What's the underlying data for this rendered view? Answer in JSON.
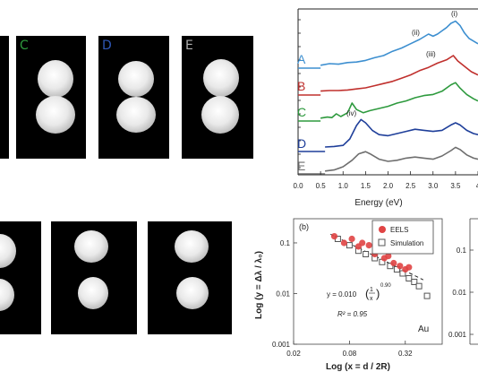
{
  "colors": {
    "A": "#3d8fd0",
    "B": "#c0302d",
    "C": "#2e9a3e",
    "D": "#1f3f9a",
    "E": "#6e6e6e"
  },
  "images": {
    "top_labels": [
      "C",
      "D",
      "E"
    ]
  },
  "chart_data": [
    {
      "type": "line",
      "xlabel": "Energy (eV)",
      "xticks": [
        "0.0",
        "0.5",
        "1.0",
        "1.5",
        "2.0",
        "2.5",
        "3.0",
        "3.5",
        "4"
      ],
      "xlim": [
        0,
        4
      ],
      "series": [
        {
          "name": "A",
          "color": "#3d8fd0",
          "x": [
            0.5,
            0.7,
            0.9,
            1.1,
            1.3,
            1.5,
            1.7,
            1.9,
            2.1,
            2.3,
            2.5,
            2.7,
            2.8,
            2.9,
            3.0,
            3.1,
            3.2,
            3.3,
            3.4,
            3.5,
            3.6,
            3.7,
            3.8,
            4.0
          ],
          "y": [
            0.02,
            0.05,
            0.04,
            0.07,
            0.08,
            0.11,
            0.16,
            0.2,
            0.28,
            0.34,
            0.42,
            0.5,
            0.55,
            0.6,
            0.56,
            0.6,
            0.66,
            0.72,
            0.8,
            0.84,
            0.76,
            0.62,
            0.52,
            0.42
          ]
        },
        {
          "name": "B",
          "color": "#c0302d",
          "x": [
            0.5,
            0.7,
            0.9,
            1.1,
            1.3,
            1.5,
            1.7,
            1.9,
            2.1,
            2.3,
            2.5,
            2.7,
            2.9,
            3.1,
            3.3,
            3.45,
            3.55,
            3.7,
            3.85,
            4.0
          ],
          "y": [
            0.04,
            0.05,
            0.05,
            0.06,
            0.08,
            0.1,
            0.14,
            0.18,
            0.22,
            0.28,
            0.34,
            0.42,
            0.48,
            0.56,
            0.62,
            0.7,
            0.6,
            0.5,
            0.4,
            0.34
          ]
        },
        {
          "name": "C",
          "color": "#2e9a3e",
          "x": [
            0.5,
            0.65,
            0.75,
            0.85,
            0.95,
            1.1,
            1.2,
            1.3,
            1.45,
            1.6,
            1.8,
            2.0,
            2.2,
            2.4,
            2.6,
            2.8,
            3.0,
            3.2,
            3.4,
            3.5,
            3.6,
            3.75,
            3.9,
            4.0
          ],
          "y": [
            0.02,
            0.04,
            0.03,
            0.1,
            0.05,
            0.12,
            0.3,
            0.18,
            0.12,
            0.16,
            0.2,
            0.24,
            0.3,
            0.34,
            0.4,
            0.44,
            0.46,
            0.52,
            0.64,
            0.68,
            0.58,
            0.46,
            0.38,
            0.34
          ]
        },
        {
          "name": "D",
          "color": "#1f3f9a",
          "x": [
            0.6,
            0.8,
            1.0,
            1.15,
            1.3,
            1.4,
            1.5,
            1.65,
            1.8,
            2.0,
            2.2,
            2.4,
            2.6,
            2.8,
            3.0,
            3.2,
            3.4,
            3.5,
            3.6,
            3.75,
            3.9,
            4.0
          ],
          "y": [
            0.05,
            0.06,
            0.08,
            0.2,
            0.45,
            0.56,
            0.5,
            0.36,
            0.28,
            0.26,
            0.3,
            0.34,
            0.38,
            0.36,
            0.34,
            0.36,
            0.46,
            0.5,
            0.46,
            0.36,
            0.3,
            0.28
          ]
        },
        {
          "name": "E",
          "color": "#6e6e6e",
          "x": [
            0.6,
            0.8,
            1.0,
            1.2,
            1.35,
            1.5,
            1.6,
            1.8,
            2.0,
            2.2,
            2.4,
            2.6,
            2.8,
            3.0,
            3.2,
            3.4,
            3.5,
            3.6,
            3.75,
            3.9,
            4.0
          ],
          "y": [
            0.02,
            0.04,
            0.1,
            0.22,
            0.34,
            0.38,
            0.34,
            0.24,
            0.2,
            0.22,
            0.26,
            0.28,
            0.26,
            0.24,
            0.3,
            0.4,
            0.46,
            0.42,
            0.32,
            0.26,
            0.24
          ]
        }
      ],
      "annotations": [
        "(i)",
        "(ii)",
        "(iii)",
        "(iv)"
      ]
    },
    {
      "type": "scatter",
      "panel_label": "(b)",
      "xlabel": "Log (x = d / 2R)",
      "ylabel": "Log (y = Δλ / λ₀)",
      "x_scale": "log",
      "y_scale": "log",
      "xticks": [
        "0.02",
        "0.08",
        "0.32"
      ],
      "yticks": [
        "0.1",
        "0.01",
        "0.001"
      ],
      "xlim": [
        0.02,
        0.8
      ],
      "ylim": [
        0.001,
        0.3
      ],
      "legend": [
        "EELS",
        "Simulation"
      ],
      "material_label": "Au",
      "fit_text": {
        "prefix": "y = 0.010",
        "frac_num": "1",
        "frac_den": "x",
        "exponent": "0.90",
        "r2": "R² = 0.95"
      },
      "series": [
        {
          "name": "EELS",
          "color": "#e04444",
          "x": [
            0.055,
            0.07,
            0.085,
            0.1,
            0.11,
            0.13,
            0.15,
            0.17,
            0.19,
            0.21,
            0.24,
            0.28,
            0.32,
            0.35
          ],
          "y": [
            0.135,
            0.1,
            0.12,
            0.085,
            0.1,
            0.09,
            0.06,
            0.07,
            0.05,
            0.055,
            0.04,
            0.035,
            0.03,
            0.033
          ]
        },
        {
          "name": "Simulation",
          "color": "#555555",
          "x": [
            0.06,
            0.08,
            0.1,
            0.12,
            0.15,
            0.18,
            0.22,
            0.26,
            0.3,
            0.35,
            0.4,
            0.45,
            0.55
          ],
          "y": [
            0.12,
            0.09,
            0.07,
            0.06,
            0.05,
            0.042,
            0.035,
            0.03,
            0.025,
            0.02,
            0.017,
            0.014,
            0.009
          ]
        }
      ],
      "fit": {
        "a": 0.01,
        "b": -0.9
      }
    },
    {
      "type": "scatter",
      "yticks": [
        "0.1",
        "0.01",
        "0.001"
      ]
    }
  ]
}
